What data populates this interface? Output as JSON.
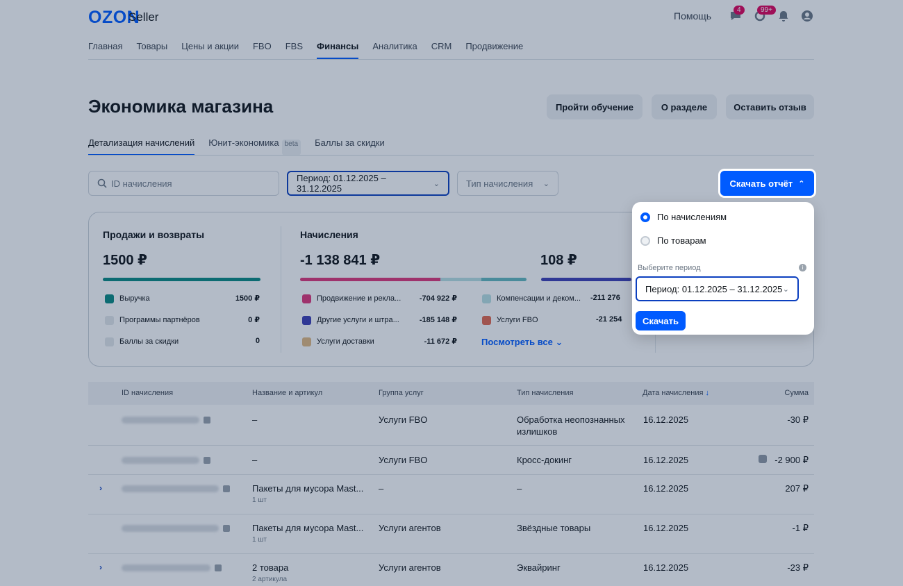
{
  "header": {
    "logo": "OZON",
    "logo_sub": "Seller",
    "help": "Помощь",
    "chat_badge": "4",
    "support_badge": "99+"
  },
  "nav": [
    "Главная",
    "Товары",
    "Цены и акции",
    "FBO",
    "FBS",
    "Финансы",
    "Аналитика",
    "CRM",
    "Продвижение"
  ],
  "nav_active": "Финансы",
  "page": {
    "title": "Экономика магазина",
    "btn_learn": "Пройти обучение",
    "btn_about": "О разделе",
    "btn_feedback": "Оставить отзыв"
  },
  "subtabs": {
    "details": "Детализация начислений",
    "unit": "Юнит-экономика",
    "beta": "beta",
    "points": "Баллы за скидки"
  },
  "filters": {
    "search_placeholder": "ID начисления",
    "period": "Период: 01.12.2025 – 31.12.2025",
    "type": "Тип начисления",
    "download": "Скачать отчёт"
  },
  "summary": {
    "sales": {
      "title": "Продажи и возвраты",
      "total": "1500 ₽",
      "items": [
        {
          "label": "Выручка",
          "value": "1500 ₽",
          "color": "#0a8a82"
        },
        {
          "label": "Программы партнёров",
          "value": "0 ₽",
          "color": "#e3e7eb"
        },
        {
          "label": "Баллы за скидки",
          "value": "0",
          "color": "#e3e7eb"
        }
      ]
    },
    "charges": {
      "title": "Начисления",
      "total": "-1 138 841 ₽",
      "items_left": [
        {
          "label": "Продвижение и рекла...",
          "value": "-704 922 ₽",
          "color": "#e0357a"
        },
        {
          "label": "Другие услуги и штра...",
          "value": "-185 148 ₽",
          "color": "#3d3fb5"
        },
        {
          "label": "Услуги доставки",
          "value": "-11 672 ₽",
          "color": "#e2b982"
        }
      ],
      "items_right": [
        {
          "label": "Компенсации и деком...",
          "value": "-211 276",
          "color": "#b9e1e4"
        },
        {
          "label": "Услуги FBO",
          "value": "-21 254",
          "color": "#e4684e"
        }
      ],
      "see_all": "Посмотреть все"
    },
    "third": {
      "total": "108 ₽"
    }
  },
  "table": {
    "headers": {
      "id": "ID начисления",
      "name": "Название и артикул",
      "group": "Группа услуг",
      "type": "Тип начисления",
      "date": "Дата начисления",
      "sum": "Сумма"
    },
    "rows": [
      {
        "name": "–",
        "name_sub": "",
        "group": "Услуги FBO",
        "type": "Обработка неопознанных",
        "type2": "излишков",
        "date": "16.12.2025",
        "sum": "-30 ₽"
      },
      {
        "name": "–",
        "name_sub": "",
        "group": "Услуги FBO",
        "type": "Кросс-докинг",
        "type2": "",
        "date": "16.12.2025",
        "sum": "-2 900 ₽"
      },
      {
        "name": "Пакеты для мусора Mast...",
        "name_sub": "1 шт",
        "group": "–",
        "type": "–",
        "type2": "",
        "date": "16.12.2025",
        "sum": "207 ₽"
      },
      {
        "name": "Пакеты для мусора Mast...",
        "name_sub": "1 шт",
        "group": "Услуги агентов",
        "type": "Звёздные товары",
        "type2": "",
        "date": "16.12.2025",
        "sum": "-1 ₽"
      },
      {
        "name": "2 товара",
        "name_sub": "2 артикула",
        "group": "Услуги агентов",
        "type": "Эквайринг",
        "type2": "",
        "date": "16.12.2025",
        "sum": "-23 ₽"
      }
    ]
  },
  "popup": {
    "opt1": "По начислениям",
    "opt2": "По товарам",
    "period_label": "Выберите период",
    "period_value": "Период: 01.12.2025 – 31.12.2025",
    "download": "Скачать"
  }
}
